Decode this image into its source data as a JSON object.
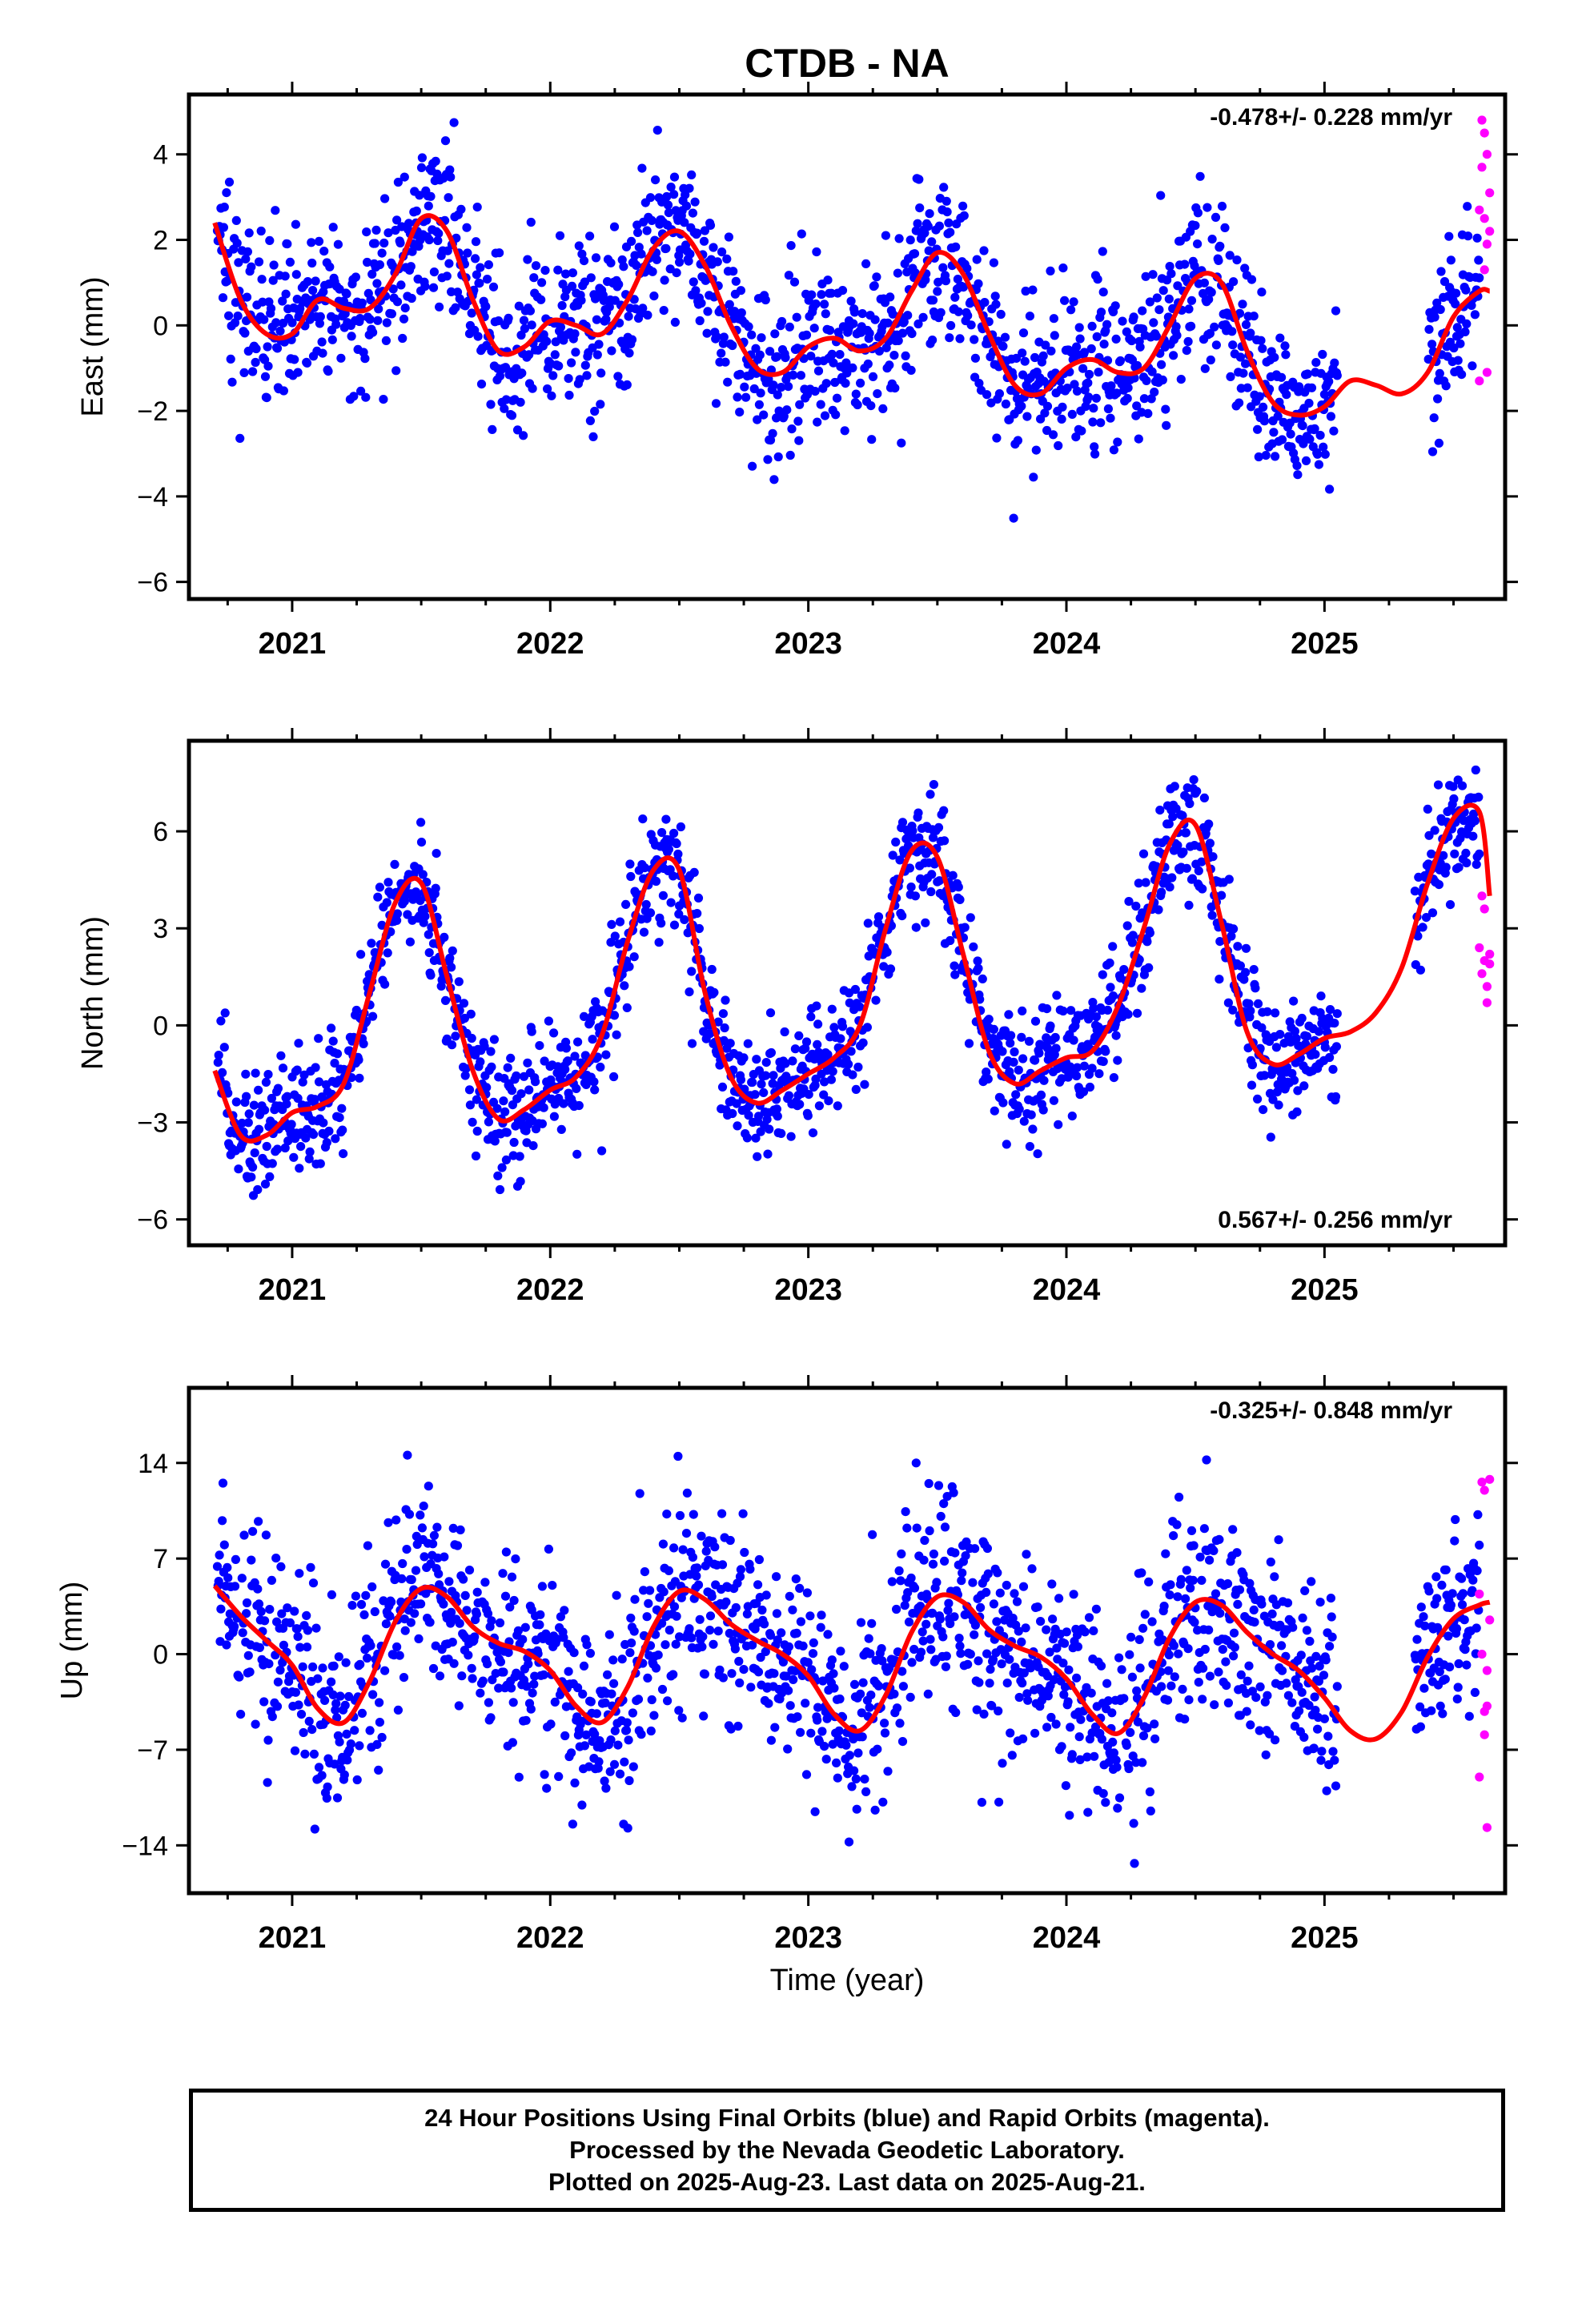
{
  "title": "CTDB - NA",
  "xlabel": "Time (year)",
  "footer": {
    "line1": "24 Hour Positions Using Final Orbits (blue) and Rapid Orbits (magenta).",
    "line2": "Processed by the Nevada Geodetic Laboratory.",
    "line3": "Plotted on 2025-Aug-23. Last data on 2025-Aug-21."
  },
  "colors": {
    "final_points": "#0000ff",
    "rapid_points": "#ff00ff",
    "model_curve": "#ff0000",
    "frame": "#000000"
  },
  "chart_data": [
    {
      "type": "scatter",
      "panel": "east",
      "ylabel": "East (mm)",
      "rate_label": "-0.478+/- 0.228 mm/yr",
      "rate_position": "top-right",
      "xlim": [
        2020.6,
        2025.7
      ],
      "ylim": [
        -6.4,
        5.4
      ],
      "yticks": [
        4,
        2,
        0,
        -2,
        -4,
        -6
      ],
      "ytick_labels": [
        "4",
        "2",
        "0",
        "−2",
        "−4",
        "−6"
      ],
      "xticks": [
        2021,
        2022,
        2023,
        2024,
        2025
      ],
      "xtick_labels": [
        "2021",
        "2022",
        "2023",
        "2024",
        "2025"
      ],
      "model_curve": {
        "x": [
          2020.7,
          2020.8,
          2020.9,
          2021.0,
          2021.1,
          2021.2,
          2021.3,
          2021.4,
          2021.5,
          2021.6,
          2021.7,
          2021.8,
          2021.9,
          2022.0,
          2022.1,
          2022.2,
          2022.3,
          2022.4,
          2022.5,
          2022.6,
          2022.7,
          2022.8,
          2022.9,
          2023.0,
          2023.1,
          2023.2,
          2023.3,
          2023.4,
          2023.5,
          2023.6,
          2023.7,
          2023.8,
          2023.9,
          2024.0,
          2024.1,
          2024.2,
          2024.3,
          2024.4,
          2024.5,
          2024.6,
          2024.7,
          2024.8,
          2024.9,
          2025.0,
          2025.1,
          2025.2,
          2025.3,
          2025.4,
          2025.5,
          2025.6,
          2025.64
        ],
        "y": [
          2.4,
          0.6,
          -0.2,
          -0.2,
          0.6,
          0.4,
          0.4,
          1.2,
          2.5,
          2.2,
          0.6,
          -0.6,
          -0.5,
          0.1,
          0.0,
          -0.2,
          0.6,
          1.8,
          2.2,
          1.4,
          0.0,
          -1.0,
          -1.1,
          -0.5,
          -0.3,
          -0.6,
          -0.3,
          0.8,
          1.7,
          1.2,
          -0.2,
          -1.4,
          -1.6,
          -1.0,
          -0.8,
          -1.1,
          -1.0,
          0.0,
          1.1,
          1.0,
          -0.6,
          -1.8,
          -2.1,
          -1.9,
          -1.3,
          -1.4,
          -1.6,
          -1.1,
          0.2,
          0.8,
          0.8
        ]
      },
      "seasonal": {
        "annual_amp": 1.3,
        "annual_phase": 0.6,
        "semi_amp": 0.4,
        "semi_phase": 0.1,
        "noise_sd": 1.0
      },
      "rapid_points": {
        "x": [
          2025.6,
          2025.6,
          2025.61,
          2025.61,
          2025.62,
          2025.62,
          2025.62,
          2025.63,
          2025.63,
          2025.63,
          2025.64,
          2025.64
        ],
        "y": [
          -1.3,
          2.7,
          4.8,
          3.7,
          4.5,
          1.3,
          2.5,
          1.9,
          -1.1,
          4.0,
          3.1,
          2.2
        ]
      },
      "gaps": [
        [
          2025.05,
          2025.4
        ]
      ]
    },
    {
      "type": "scatter",
      "panel": "north",
      "ylabel": "North (mm)",
      "rate_label": "0.567+/- 0.256 mm/yr",
      "rate_position": "bottom-right",
      "xlim": [
        2020.6,
        2025.7
      ],
      "ylim": [
        -6.8,
        8.8
      ],
      "yticks": [
        6,
        3,
        0,
        -3,
        -6
      ],
      "ytick_labels": [
        "6",
        "3",
        "0",
        "−3",
        "−6"
      ],
      "xticks": [
        2021,
        2022,
        2023,
        2024,
        2025
      ],
      "xtick_labels": [
        "2021",
        "2022",
        "2023",
        "2024",
        "2025"
      ],
      "model_curve": {
        "x": [
          2020.7,
          2020.8,
          2020.9,
          2021.0,
          2021.1,
          2021.2,
          2021.3,
          2021.4,
          2021.5,
          2021.6,
          2021.7,
          2021.8,
          2021.9,
          2022.0,
          2022.1,
          2022.2,
          2022.3,
          2022.4,
          2022.5,
          2022.6,
          2022.7,
          2022.8,
          2022.9,
          2023.0,
          2023.1,
          2023.2,
          2023.3,
          2023.4,
          2023.5,
          2023.6,
          2023.7,
          2023.8,
          2023.9,
          2024.0,
          2024.1,
          2024.2,
          2024.3,
          2024.4,
          2024.5,
          2024.6,
          2024.7,
          2024.8,
          2024.9,
          2025.0,
          2025.1,
          2025.2,
          2025.3,
          2025.4,
          2025.5,
          2025.6,
          2025.64
        ],
        "y": [
          -1.4,
          -3.4,
          -3.4,
          -2.7,
          -2.5,
          -1.8,
          1.0,
          3.8,
          4.4,
          1.5,
          -1.4,
          -2.9,
          -2.6,
          -2.0,
          -1.6,
          -0.3,
          2.6,
          4.8,
          4.8,
          1.0,
          -1.6,
          -2.4,
          -2.0,
          -1.5,
          -1.0,
          0.0,
          3.0,
          5.4,
          5.2,
          2.2,
          -0.8,
          -1.8,
          -1.4,
          -1.0,
          -0.8,
          0.6,
          3.0,
          5.6,
          6.2,
          3.2,
          -0.2,
          -1.2,
          -0.9,
          -0.4,
          -0.2,
          0.4,
          1.8,
          4.4,
          6.4,
          6.6,
          4.0
        ]
      },
      "seasonal": {
        "annual_amp": 4.2,
        "annual_phase": 0.48,
        "semi_amp": 0.6,
        "semi_phase": 0.2,
        "noise_sd": 0.9
      },
      "rapid_points": {
        "x": [
          2025.6,
          2025.61,
          2025.61,
          2025.62,
          2025.62,
          2025.63,
          2025.63,
          2025.64,
          2025.64
        ],
        "y": [
          2.4,
          1.6,
          4.0,
          2.0,
          3.6,
          0.7,
          1.2,
          2.2,
          1.9
        ]
      },
      "gaps": [
        [
          2025.05,
          2025.35
        ]
      ]
    },
    {
      "type": "scatter",
      "panel": "up",
      "ylabel": "Up (mm)",
      "rate_label": "-0.325+/- 0.848 mm/yr",
      "rate_position": "top-right",
      "xlim": [
        2020.6,
        2025.7
      ],
      "ylim": [
        -17.5,
        19.5
      ],
      "yticks": [
        14,
        7,
        0,
        -7,
        -14
      ],
      "ytick_labels": [
        "14",
        "7",
        "0",
        "−7",
        "−14"
      ],
      "xticks": [
        2021,
        2022,
        2023,
        2024,
        2025
      ],
      "xtick_labels": [
        "2021",
        "2022",
        "2023",
        "2024",
        "2025"
      ],
      "model_curve": {
        "x": [
          2020.7,
          2020.8,
          2020.9,
          2021.0,
          2021.1,
          2021.2,
          2021.3,
          2021.4,
          2021.5,
          2021.6,
          2021.7,
          2021.8,
          2021.9,
          2022.0,
          2022.1,
          2022.2,
          2022.3,
          2022.4,
          2022.5,
          2022.6,
          2022.7,
          2022.8,
          2022.9,
          2023.0,
          2023.1,
          2023.2,
          2023.3,
          2023.4,
          2023.5,
          2023.6,
          2023.7,
          2023.8,
          2023.9,
          2024.0,
          2024.1,
          2024.2,
          2024.3,
          2024.4,
          2024.5,
          2024.6,
          2024.7,
          2024.8,
          2024.9,
          2025.0,
          2025.1,
          2025.2,
          2025.3,
          2025.4,
          2025.5,
          2025.6,
          2025.64
        ],
        "y": [
          5.0,
          2.8,
          1.0,
          -0.8,
          -4.0,
          -5.0,
          -2.0,
          2.4,
          4.8,
          4.2,
          2.0,
          0.8,
          0.2,
          -1.2,
          -3.8,
          -5.0,
          -2.4,
          2.0,
          4.6,
          4.0,
          2.2,
          1.0,
          0.0,
          -1.6,
          -4.4,
          -5.6,
          -3.0,
          1.6,
          4.2,
          3.8,
          1.8,
          0.6,
          -0.2,
          -1.8,
          -4.4,
          -5.8,
          -3.2,
          1.2,
          3.8,
          3.6,
          1.6,
          0.0,
          -1.2,
          -3.2,
          -5.6,
          -6.2,
          -4.2,
          -0.2,
          2.6,
          3.6,
          3.8
        ]
      },
      "seasonal": {
        "annual_amp": 4.5,
        "annual_phase": 0.64,
        "semi_amp": 1.0,
        "semi_phase": 0.1,
        "noise_sd": 3.8
      },
      "rapid_points": {
        "x": [
          2025.6,
          2025.6,
          2025.61,
          2025.61,
          2025.62,
          2025.62,
          2025.62,
          2025.63,
          2025.63,
          2025.63,
          2025.64,
          2025.64
        ],
        "y": [
          -9.0,
          4.4,
          12.6,
          0.0,
          12.0,
          -5.9,
          -4.2,
          -3.8,
          -12.7,
          -1.2,
          12.8,
          2.5
        ]
      },
      "gaps": [
        [
          2025.05,
          2025.35
        ]
      ]
    }
  ]
}
